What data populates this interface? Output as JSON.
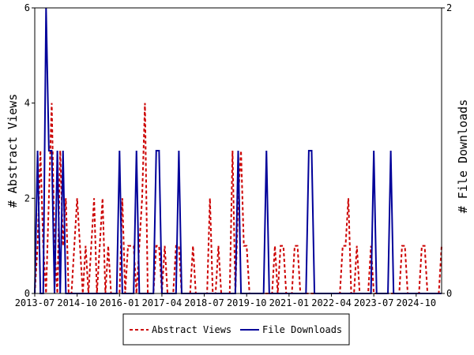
{
  "chart_data": {
    "type": "line",
    "title": "",
    "x_tick_labels": [
      "2013-07",
      "2014-10",
      "2016-01",
      "2017-04",
      "2018-07",
      "2019-10",
      "2021-01",
      "2022-04",
      "2023-07",
      "2024-10"
    ],
    "x_range": [
      "2013-07",
      "2025-07"
    ],
    "ylabel_left": "# Abstract Views",
    "ylabel_right": "# File Downloads",
    "ylim_left": [
      0,
      6
    ],
    "ylim_right": [
      0,
      2
    ],
    "yticks_left": [
      "0",
      "2",
      "4",
      "6"
    ],
    "yticks_right": [
      "0",
      "2"
    ],
    "legend_position": "bottom",
    "series": [
      {
        "name": "Abstract Views",
        "axis": "left",
        "color": "#cc0000",
        "style": "dashed",
        "points": [
          [
            "2013-07",
            0
          ],
          [
            "2013-08",
            1
          ],
          [
            "2013-09",
            3
          ],
          [
            "2013-10",
            1
          ],
          [
            "2013-11",
            0
          ],
          [
            "2013-12",
            2
          ],
          [
            "2014-01",
            4
          ],
          [
            "2014-02",
            1
          ],
          [
            "2014-03",
            0
          ],
          [
            "2014-04",
            3
          ],
          [
            "2014-05",
            1
          ],
          [
            "2014-06",
            2
          ],
          [
            "2014-07",
            0
          ],
          [
            "2014-08",
            0
          ],
          [
            "2014-09",
            1
          ],
          [
            "2014-10",
            2
          ],
          [
            "2014-11",
            1
          ],
          [
            "2014-12",
            0
          ],
          [
            "2015-01",
            1
          ],
          [
            "2015-02",
            0
          ],
          [
            "2015-03",
            1
          ],
          [
            "2015-04",
            2
          ],
          [
            "2015-05",
            0
          ],
          [
            "2015-06",
            1
          ],
          [
            "2015-07",
            2
          ],
          [
            "2015-08",
            0
          ],
          [
            "2015-09",
            1
          ],
          [
            "2015-10",
            0
          ],
          [
            "2015-11",
            0
          ],
          [
            "2015-12",
            0
          ],
          [
            "2016-01",
            0
          ],
          [
            "2016-02",
            2
          ],
          [
            "2016-03",
            0
          ],
          [
            "2016-04",
            1
          ],
          [
            "2016-05",
            1
          ],
          [
            "2016-06",
            1
          ],
          [
            "2016-07",
            0
          ],
          [
            "2016-08",
            1
          ],
          [
            "2016-09",
            2
          ],
          [
            "2016-10",
            4
          ],
          [
            "2016-11",
            0
          ],
          [
            "2016-12",
            0
          ],
          [
            "2017-01",
            0
          ],
          [
            "2017-02",
            1
          ],
          [
            "2017-03",
            1
          ],
          [
            "2017-04",
            0
          ],
          [
            "2017-05",
            1
          ],
          [
            "2017-06",
            0
          ],
          [
            "2017-07",
            0
          ],
          [
            "2017-08",
            0
          ],
          [
            "2017-09",
            1
          ],
          [
            "2017-10",
            1
          ],
          [
            "2017-11",
            0
          ],
          [
            "2017-12",
            0
          ],
          [
            "2018-01",
            0
          ],
          [
            "2018-02",
            0
          ],
          [
            "2018-03",
            1
          ],
          [
            "2018-04",
            0
          ],
          [
            "2018-05",
            0
          ],
          [
            "2018-06",
            0
          ],
          [
            "2018-07",
            0
          ],
          [
            "2018-08",
            0
          ],
          [
            "2018-09",
            2
          ],
          [
            "2018-10",
            0
          ],
          [
            "2018-11",
            0
          ],
          [
            "2018-12",
            1
          ],
          [
            "2019-01",
            0
          ],
          [
            "2019-02",
            0
          ],
          [
            "2019-03",
            0
          ],
          [
            "2019-04",
            0
          ],
          [
            "2019-05",
            3
          ],
          [
            "2019-06",
            0
          ],
          [
            "2019-07",
            2
          ],
          [
            "2019-08",
            3
          ],
          [
            "2019-09",
            1
          ],
          [
            "2019-10",
            1
          ],
          [
            "2019-11",
            0
          ],
          [
            "2019-12",
            0
          ],
          [
            "2020-01",
            0
          ],
          [
            "2020-02",
            0
          ],
          [
            "2020-03",
            0
          ],
          [
            "2020-04",
            0
          ],
          [
            "2020-05",
            0
          ],
          [
            "2020-06",
            0
          ],
          [
            "2020-07",
            0
          ],
          [
            "2020-08",
            1
          ],
          [
            "2020-09",
            0
          ],
          [
            "2020-10",
            1
          ],
          [
            "2020-11",
            1
          ],
          [
            "2020-12",
            0
          ],
          [
            "2021-01",
            0
          ],
          [
            "2021-02",
            0
          ],
          [
            "2021-03",
            1
          ],
          [
            "2021-04",
            1
          ],
          [
            "2021-05",
            0
          ],
          [
            "2021-06",
            0
          ],
          [
            "2021-07",
            0
          ],
          [
            "2021-08",
            0
          ],
          [
            "2021-09",
            0
          ],
          [
            "2021-10",
            0
          ],
          [
            "2021-11",
            0
          ],
          [
            "2021-12",
            0
          ],
          [
            "2022-01",
            0
          ],
          [
            "2022-02",
            0
          ],
          [
            "2022-03",
            0
          ],
          [
            "2022-04",
            0
          ],
          [
            "2022-05",
            0
          ],
          [
            "2022-06",
            0
          ],
          [
            "2022-07",
            0
          ],
          [
            "2022-08",
            1
          ],
          [
            "2022-09",
            1
          ],
          [
            "2022-10",
            2
          ],
          [
            "2022-11",
            0
          ],
          [
            "2022-12",
            0
          ],
          [
            "2023-01",
            1
          ],
          [
            "2023-02",
            0
          ],
          [
            "2023-03",
            0
          ],
          [
            "2023-04",
            0
          ],
          [
            "2023-05",
            0
          ],
          [
            "2023-06",
            1
          ],
          [
            "2023-07",
            0
          ],
          [
            "2023-08",
            0
          ],
          [
            "2023-09",
            0
          ],
          [
            "2023-10",
            0
          ],
          [
            "2023-11",
            0
          ],
          [
            "2023-12",
            0
          ],
          [
            "2024-01",
            0
          ],
          [
            "2024-02",
            0
          ],
          [
            "2024-03",
            0
          ],
          [
            "2024-04",
            0
          ],
          [
            "2024-05",
            1
          ],
          [
            "2024-06",
            1
          ],
          [
            "2024-07",
            0
          ],
          [
            "2024-08",
            0
          ],
          [
            "2024-09",
            0
          ],
          [
            "2024-10",
            0
          ],
          [
            "2024-11",
            0
          ],
          [
            "2024-12",
            1
          ],
          [
            "2025-01",
            1
          ],
          [
            "2025-02",
            0
          ],
          [
            "2025-03",
            0
          ],
          [
            "2025-04",
            0
          ],
          [
            "2025-05",
            0
          ],
          [
            "2025-06",
            0
          ],
          [
            "2025-07",
            1
          ]
        ]
      },
      {
        "name": "File Downloads",
        "axis": "right",
        "color": "#000099",
        "style": "solid",
        "points": [
          [
            "2013-07",
            0
          ],
          [
            "2013-08",
            1
          ],
          [
            "2013-09",
            0
          ],
          [
            "2013-10",
            0
          ],
          [
            "2013-11",
            2
          ],
          [
            "2013-12",
            1
          ],
          [
            "2014-01",
            1
          ],
          [
            "2014-02",
            0
          ],
          [
            "2014-03",
            1
          ],
          [
            "2014-04",
            0
          ],
          [
            "2014-05",
            1
          ],
          [
            "2014-06",
            0
          ],
          [
            "2014-07",
            0
          ],
          [
            "2014-08",
            0
          ],
          [
            "2014-09",
            0
          ],
          [
            "2014-10",
            0
          ],
          [
            "2014-11",
            0
          ],
          [
            "2014-12",
            0
          ],
          [
            "2015-01",
            0
          ],
          [
            "2015-02",
            0
          ],
          [
            "2015-03",
            0
          ],
          [
            "2015-04",
            0
          ],
          [
            "2015-05",
            0
          ],
          [
            "2015-06",
            0
          ],
          [
            "2015-07",
            0
          ],
          [
            "2015-08",
            0
          ],
          [
            "2015-09",
            0
          ],
          [
            "2015-10",
            0
          ],
          [
            "2015-11",
            0
          ],
          [
            "2015-12",
            0
          ],
          [
            "2016-01",
            1
          ],
          [
            "2016-02",
            0
          ],
          [
            "2016-03",
            0
          ],
          [
            "2016-04",
            0
          ],
          [
            "2016-05",
            0
          ],
          [
            "2016-06",
            0
          ],
          [
            "2016-07",
            1
          ],
          [
            "2016-08",
            0
          ],
          [
            "2016-09",
            0
          ],
          [
            "2016-10",
            0
          ],
          [
            "2016-11",
            0
          ],
          [
            "2016-12",
            0
          ],
          [
            "2017-01",
            0
          ],
          [
            "2017-02",
            1
          ],
          [
            "2017-03",
            1
          ],
          [
            "2017-04",
            0
          ],
          [
            "2017-05",
            0
          ],
          [
            "2017-06",
            0
          ],
          [
            "2017-07",
            0
          ],
          [
            "2017-08",
            0
          ],
          [
            "2017-09",
            0
          ],
          [
            "2017-10",
            1
          ],
          [
            "2017-11",
            0
          ],
          [
            "2017-12",
            0
          ],
          [
            "2018-01",
            0
          ],
          [
            "2018-02",
            0
          ],
          [
            "2018-03",
            0
          ],
          [
            "2018-04",
            0
          ],
          [
            "2018-05",
            0
          ],
          [
            "2018-06",
            0
          ],
          [
            "2018-07",
            0
          ],
          [
            "2018-08",
            0
          ],
          [
            "2018-09",
            0
          ],
          [
            "2018-10",
            0
          ],
          [
            "2018-11",
            0
          ],
          [
            "2018-12",
            0
          ],
          [
            "2019-01",
            0
          ],
          [
            "2019-02",
            0
          ],
          [
            "2019-03",
            0
          ],
          [
            "2019-04",
            0
          ],
          [
            "2019-05",
            0
          ],
          [
            "2019-06",
            0
          ],
          [
            "2019-07",
            1
          ],
          [
            "2019-08",
            0
          ],
          [
            "2019-09",
            0
          ],
          [
            "2019-10",
            0
          ],
          [
            "2019-11",
            0
          ],
          [
            "2019-12",
            0
          ],
          [
            "2020-01",
            0
          ],
          [
            "2020-02",
            0
          ],
          [
            "2020-03",
            0
          ],
          [
            "2020-04",
            0
          ],
          [
            "2020-05",
            1
          ],
          [
            "2020-06",
            0
          ],
          [
            "2020-07",
            0
          ],
          [
            "2020-08",
            0
          ],
          [
            "2020-09",
            0
          ],
          [
            "2020-10",
            0
          ],
          [
            "2020-11",
            0
          ],
          [
            "2020-12",
            0
          ],
          [
            "2021-01",
            0
          ],
          [
            "2021-02",
            0
          ],
          [
            "2021-03",
            0
          ],
          [
            "2021-04",
            0
          ],
          [
            "2021-05",
            0
          ],
          [
            "2021-06",
            0
          ],
          [
            "2021-07",
            0
          ],
          [
            "2021-08",
            1
          ],
          [
            "2021-09",
            1
          ],
          [
            "2021-10",
            0
          ],
          [
            "2021-11",
            0
          ],
          [
            "2021-12",
            0
          ],
          [
            "2022-01",
            0
          ],
          [
            "2022-02",
            0
          ],
          [
            "2022-03",
            0
          ],
          [
            "2022-04",
            0
          ],
          [
            "2022-05",
            0
          ],
          [
            "2022-06",
            0
          ],
          [
            "2022-07",
            0
          ],
          [
            "2022-08",
            0
          ],
          [
            "2022-09",
            0
          ],
          [
            "2022-10",
            0
          ],
          [
            "2022-11",
            0
          ],
          [
            "2022-12",
            0
          ],
          [
            "2023-01",
            0
          ],
          [
            "2023-02",
            0
          ],
          [
            "2023-03",
            0
          ],
          [
            "2023-04",
            0
          ],
          [
            "2023-05",
            0
          ],
          [
            "2023-06",
            0
          ],
          [
            "2023-07",
            1
          ],
          [
            "2023-08",
            0
          ],
          [
            "2023-09",
            0
          ],
          [
            "2023-10",
            0
          ],
          [
            "2023-11",
            0
          ],
          [
            "2023-12",
            0
          ],
          [
            "2024-01",
            1
          ],
          [
            "2024-02",
            0
          ],
          [
            "2024-03",
            0
          ],
          [
            "2024-04",
            0
          ],
          [
            "2024-05",
            0
          ],
          [
            "2024-06",
            0
          ],
          [
            "2024-07",
            0
          ],
          [
            "2024-08",
            0
          ],
          [
            "2024-09",
            0
          ],
          [
            "2024-10",
            0
          ],
          [
            "2024-11",
            0
          ],
          [
            "2024-12",
            0
          ],
          [
            "2025-01",
            0
          ],
          [
            "2025-02",
            0
          ],
          [
            "2025-03",
            0
          ],
          [
            "2025-04",
            0
          ],
          [
            "2025-05",
            0
          ],
          [
            "2025-06",
            0
          ],
          [
            "2025-07",
            0
          ]
        ]
      }
    ]
  }
}
